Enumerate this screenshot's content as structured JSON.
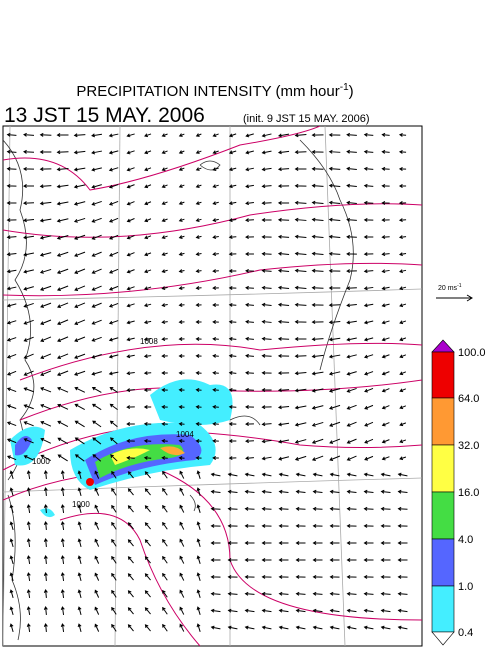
{
  "title": {
    "text": "PRECIPITATION INTENSITY (mm hour",
    "superscript": "-1",
    "suffix": ")"
  },
  "valid_time": "13 JST 15 MAY. 2006",
  "init_time": "(init. 9 JST 15 MAY. 2006)",
  "scale_vector": {
    "text": "20 ms",
    "superscript": "-1"
  },
  "isobar_labels": [
    "1008",
    "1004",
    "1000",
    "1000"
  ],
  "colorbar": {
    "labels": [
      "100.0",
      "64.0",
      "32.0",
      "16.0",
      "4.0",
      "1.0",
      "0.4"
    ]
  }
}
